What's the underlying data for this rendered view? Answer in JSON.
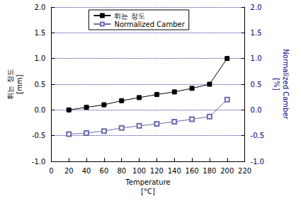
{
  "chart_data": {
    "type": "line",
    "x_label": "Temperature\n[°C]",
    "y_label": "휘는 정도\n[mm]",
    "y2_label": "Normalized Camber\n[%]",
    "x": [
      20,
      40,
      60,
      80,
      100,
      120,
      140,
      160,
      180,
      200
    ],
    "series": [
      {
        "name": "휘는 정도",
        "color": "#000000",
        "marker": "square",
        "line_style": "solid",
        "values": [
          0.0,
          0.05,
          0.1,
          0.18,
          0.24,
          0.3,
          0.35,
          0.42,
          0.5,
          1.0
        ]
      },
      {
        "name": "Normalized Camber",
        "color": "#6b6bb0",
        "marker": "open_square",
        "line_style": "solid",
        "axis": "y2",
        "values": [
          -0.47,
          -0.45,
          -0.41,
          -0.35,
          -0.31,
          -0.27,
          -0.23,
          -0.18,
          -0.13,
          0.2
        ]
      }
    ],
    "xlim": [
      0,
      220
    ],
    "xticks": [
      0,
      20,
      40,
      60,
      80,
      100,
      120,
      140,
      160,
      180,
      200,
      220
    ],
    "ylim": [
      -1,
      2
    ],
    "yticks": [
      {
        "value": -1,
        "label": "-1.0"
      },
      {
        "value": -0.5,
        "label": "-0.5"
      },
      {
        "value": 0,
        "label": "0.0"
      },
      {
        "value": 0.5,
        "label": "0.5"
      },
      {
        "value": 1,
        "label": "1.0"
      },
      {
        "value": 1.5,
        "label": "1.5"
      },
      {
        "value": 2,
        "label": "2.0"
      }
    ],
    "y2lim": [
      -1,
      2
    ],
    "y2ticks": [
      {
        "value": -1,
        "label": "-1.0"
      },
      {
        "value": -0.5,
        "label": "-0.5"
      },
      {
        "value": 0,
        "label": "0.0"
      },
      {
        "value": 0.5,
        "label": "0.5"
      },
      {
        "value": 1,
        "label": "1.0"
      },
      {
        "value": 1.5,
        "label": "1.5"
      },
      {
        "value": 2,
        "label": "2.0"
      }
    ],
    "grid": true,
    "legend": "upper left"
  }
}
